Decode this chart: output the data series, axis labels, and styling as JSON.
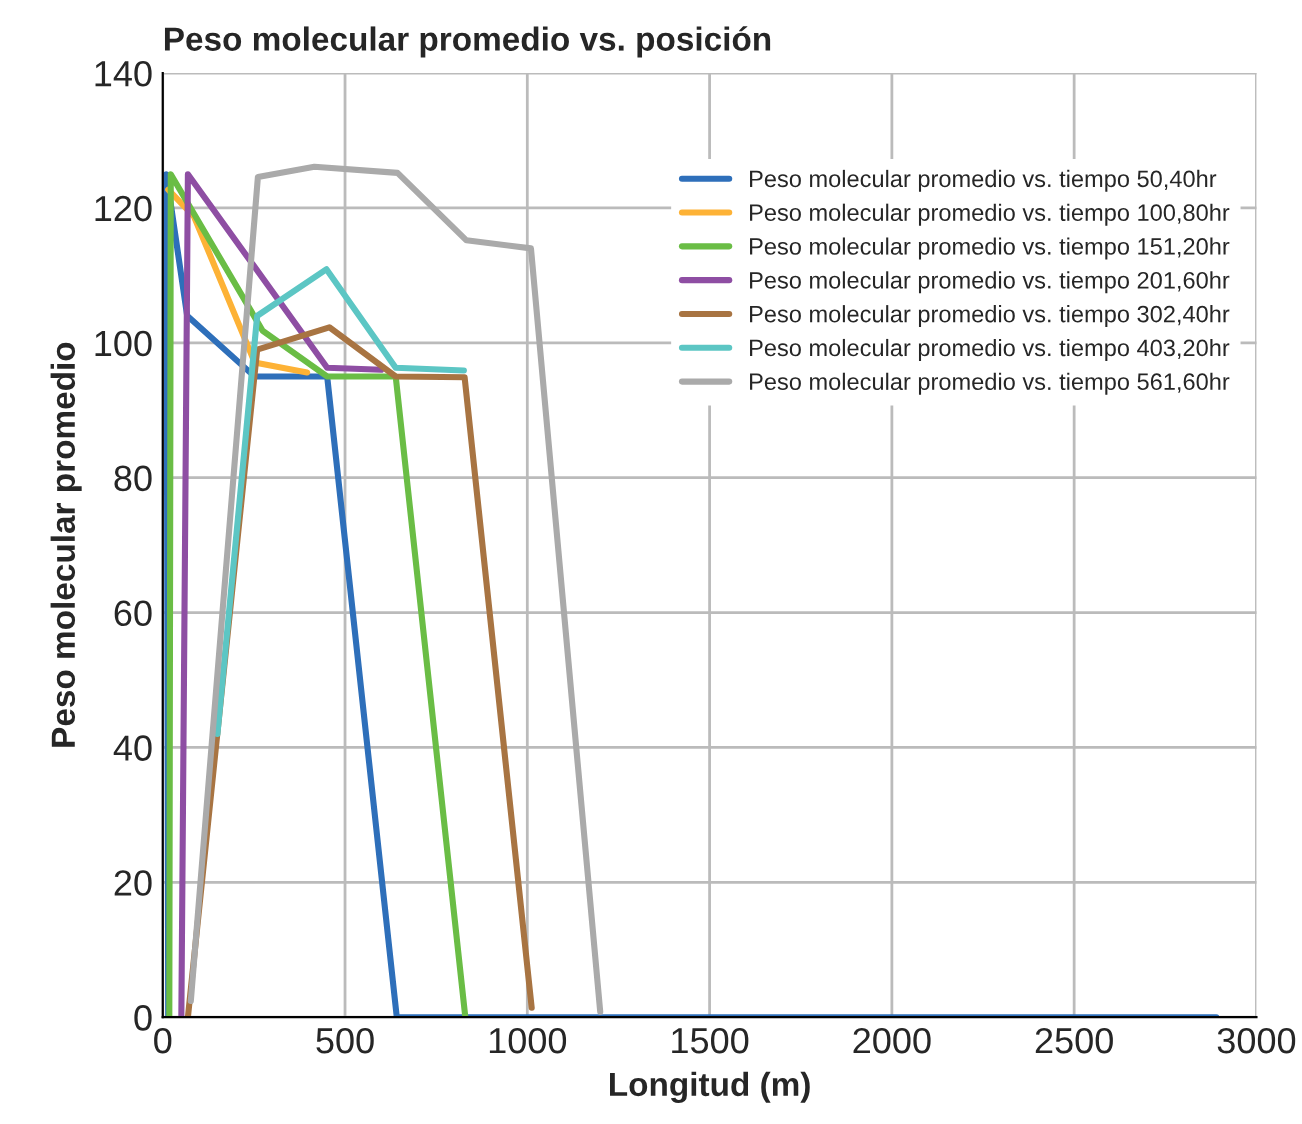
{
  "chart_data": {
    "type": "line",
    "title": "Peso molecular promedio vs. posición",
    "xlabel": "Longitud (m)",
    "ylabel": "Peso molecular promedio",
    "xlim": [
      0,
      3000
    ],
    "xticks": [
      0,
      500,
      1000,
      1500,
      2000,
      2500,
      3000
    ],
    "ylim": [
      0,
      140
    ],
    "yticks": [
      0,
      20,
      40,
      60,
      80,
      100,
      120,
      140
    ],
    "grid": true,
    "legend": "top right",
    "marker": "none",
    "line_style": "solid",
    "series": [
      {
        "name": "Peso molecular promedio vs. tiempo 50,40hr",
        "color": "#2e6fba",
        "x": [
          15,
          10,
          67,
          252,
          451,
          642,
          2890
        ],
        "values": [
          0,
          125,
          104,
          95,
          95,
          0,
          0
        ]
      },
      {
        "name": "Peso molecular promedio vs. tiempo 100,80hr",
        "color": "#fdb236",
        "x": [
          15,
          86,
          252,
          396
        ],
        "values": [
          122.7,
          118.7,
          97.1,
          95.6
        ]
      },
      {
        "name": "Peso molecular promedio vs. tiempo 151,20hr",
        "color": "#6abd45",
        "x": [
          18,
          22,
          274,
          451,
          639,
          830
        ],
        "values": [
          0,
          125,
          101.8,
          95,
          95,
          0
        ]
      },
      {
        "name": "Peso molecular promedio vs. tiempo 201,60hr",
        "color": "#8e4ea3",
        "x": [
          51,
          69,
          451,
          599
        ],
        "values": [
          0,
          125,
          96.3,
          96
        ]
      },
      {
        "name": "Peso molecular promedio vs. tiempo 302,40hr",
        "color": "#a87442",
        "x": [
          69,
          259,
          457,
          639,
          828,
          1012
        ],
        "values": [
          0,
          99,
          102.3,
          95,
          94.9,
          1.4
        ]
      },
      {
        "name": "Peso molecular promedio vs. tiempo 403,20hr",
        "color": "#5cc6c4",
        "x": [
          150,
          259,
          449,
          639,
          826
        ],
        "values": [
          42,
          104,
          110.9,
          96.3,
          95.9
        ]
      },
      {
        "name": "Peso molecular promedio vs. tiempo 561,60hr",
        "color": "#aaaaaa",
        "x": [
          77,
          261,
          416,
          644,
          833,
          1010,
          1200
        ],
        "values": [
          2.4,
          124.6,
          126.1,
          125.2,
          115.2,
          114,
          0.8
        ]
      }
    ]
  }
}
